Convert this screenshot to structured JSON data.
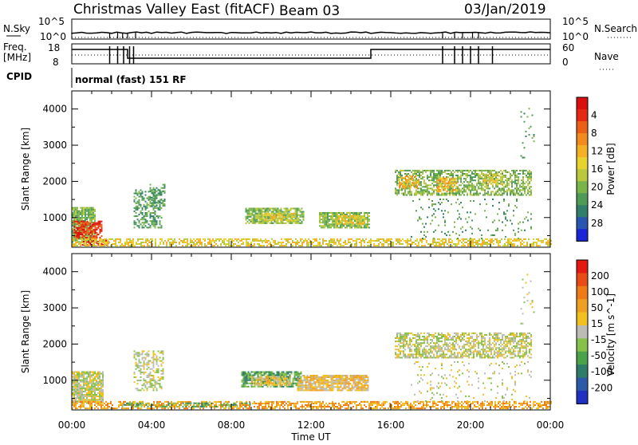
{
  "header": {
    "station": "Christmas Valley East (fitACF)",
    "beam": "Beam 03",
    "date": "03/Jan/2019"
  },
  "status_panels": {
    "nsky_label": "N.Sky",
    "nsky_ticks": [
      "10^5",
      "10^0"
    ],
    "nsearch_label": "N.Search",
    "nsearch_ticks": [
      "10^5",
      "10^0"
    ],
    "freq_label_line1": "Freq.",
    "freq_label_line2": "[MHz]",
    "freq_ticks": [
      "18",
      "8"
    ],
    "nave_label": "Nave",
    "nave_ticks": [
      "60",
      "0"
    ],
    "cpid_label": "CPID",
    "cpid_value": "normal (fast) 151 RF"
  },
  "chart_data": [
    {
      "type": "heatmap",
      "name": "power",
      "ylabel": "Slant Range [km]",
      "yticks": [
        1000,
        2000,
        3000,
        4000
      ],
      "ylim": [
        180,
        4500
      ],
      "xticks": [
        "00:00",
        "04:00",
        "08:00",
        "12:00",
        "16:00",
        "20:00",
        "00:00"
      ],
      "xlim_hours": [
        0,
        24
      ],
      "colorbar": {
        "label": "Power [dB]",
        "ticks": [
          "4",
          "8",
          "12",
          "16",
          "20",
          "24",
          "28"
        ],
        "colors": [
          "#1a25d8",
          "#2a55b0",
          "#2f7f6a",
          "#4e9b57",
          "#7ab54a",
          "#b9c83c",
          "#e8d230",
          "#f5b025",
          "#f28a1e",
          "#ec5f16",
          "#e52a12",
          "#d8100e"
        ]
      },
      "regions": [
        {
          "t0": 0.0,
          "t1": 1.2,
          "r0": 300,
          "r1": 1250,
          "level": 4,
          "dens": 0.85
        },
        {
          "t0": 0.1,
          "t1": 1.5,
          "r0": 420,
          "r1": 900,
          "level": 10,
          "dens": 0.7
        },
        {
          "t0": 0.5,
          "t1": 1.8,
          "r0": 220,
          "r1": 380,
          "level": 11,
          "dens": 0.6
        },
        {
          "t0": 3.1,
          "t1": 4.5,
          "r0": 700,
          "r1": 1750,
          "level": 3,
          "dens": 0.45
        },
        {
          "t0": 3.9,
          "t1": 4.7,
          "r0": 1300,
          "r1": 1900,
          "level": 3,
          "dens": 0.45
        },
        {
          "t0": 8.7,
          "t1": 11.6,
          "r0": 820,
          "r1": 1250,
          "level": 4,
          "dens": 0.8
        },
        {
          "t0": 9.4,
          "t1": 11.2,
          "r0": 900,
          "r1": 1100,
          "level": 6,
          "dens": 0.7
        },
        {
          "t0": 12.4,
          "t1": 14.9,
          "r0": 700,
          "r1": 1150,
          "level": 4,
          "dens": 0.8
        },
        {
          "t0": 13.2,
          "t1": 14.7,
          "r0": 800,
          "r1": 1050,
          "level": 6,
          "dens": 0.7
        },
        {
          "t0": 0.0,
          "t1": 24.0,
          "r0": 200,
          "r1": 420,
          "level": 6,
          "dens": 0.55
        },
        {
          "t0": 16.2,
          "t1": 23.0,
          "r0": 1600,
          "r1": 2300,
          "level": 4,
          "dens": 0.6
        },
        {
          "t0": 16.4,
          "t1": 17.4,
          "r0": 1800,
          "r1": 2150,
          "level": 7,
          "dens": 0.6
        },
        {
          "t0": 18.3,
          "t1": 19.3,
          "r0": 1700,
          "r1": 2100,
          "level": 7,
          "dens": 0.6
        },
        {
          "t0": 20.6,
          "t1": 21.6,
          "r0": 1900,
          "r1": 2200,
          "level": 6,
          "dens": 0.5
        },
        {
          "t0": 17.0,
          "t1": 23.0,
          "r0": 400,
          "r1": 1500,
          "level": 3,
          "dens": 0.08
        },
        {
          "t0": 22.5,
          "t1": 23.2,
          "r0": 2500,
          "r1": 4100,
          "level": 3,
          "dens": 0.05
        }
      ]
    },
    {
      "type": "heatmap",
      "name": "velocity",
      "ylabel": "Slant Range [km]",
      "yticks": [
        1000,
        2000,
        3000,
        4000
      ],
      "ylim": [
        180,
        4500
      ],
      "xticks": [
        "00:00",
        "04:00",
        "08:00",
        "12:00",
        "16:00",
        "20:00",
        "00:00"
      ],
      "xlim_hours": [
        0,
        24
      ],
      "xlabel": "Time UT",
      "colorbar": {
        "label": "Velocity [m s^-1]",
        "ticks": [
          "200",
          "100",
          "50",
          "15",
          "-15",
          "-50",
          "-100",
          "-200"
        ],
        "colors": [
          "#2030c0",
          "#2d5aa8",
          "#2e7d68",
          "#4aa24a",
          "#86c24a",
          "#bcbcb4",
          "#f2c020",
          "#f0a020",
          "#ee7a18",
          "#e84c14",
          "#e21a10"
        ]
      },
      "regions": [
        {
          "t0": 0.0,
          "t1": 1.6,
          "r0": 350,
          "r1": 1250,
          "level": 5,
          "dens": 0.85
        },
        {
          "t0": 3.1,
          "t1": 4.6,
          "r0": 700,
          "r1": 1800,
          "level": 5,
          "dens": 0.45
        },
        {
          "t0": 8.5,
          "t1": 11.5,
          "r0": 800,
          "r1": 1250,
          "level": 3,
          "dens": 0.75
        },
        {
          "t0": 9.0,
          "t1": 11.0,
          "r0": 850,
          "r1": 1100,
          "level": 6,
          "dens": 0.7
        },
        {
          "t0": 11.3,
          "t1": 14.9,
          "r0": 700,
          "r1": 1150,
          "level": 6,
          "dens": 0.85
        },
        {
          "t0": 0.0,
          "t1": 24.0,
          "r0": 200,
          "r1": 420,
          "level": 7,
          "dens": 0.55
        },
        {
          "t0": 2.5,
          "t1": 9.0,
          "r0": 250,
          "r1": 380,
          "level": 3,
          "dens": 0.4
        },
        {
          "t0": 16.2,
          "t1": 23.0,
          "r0": 1600,
          "r1": 2300,
          "level": 5,
          "dens": 0.6
        },
        {
          "t0": 17.0,
          "t1": 23.0,
          "r0": 400,
          "r1": 1500,
          "level": 5,
          "dens": 0.08
        },
        {
          "t0": 22.5,
          "t1": 23.2,
          "r0": 2500,
          "r1": 4100,
          "level": 5,
          "dens": 0.05
        }
      ]
    }
  ]
}
